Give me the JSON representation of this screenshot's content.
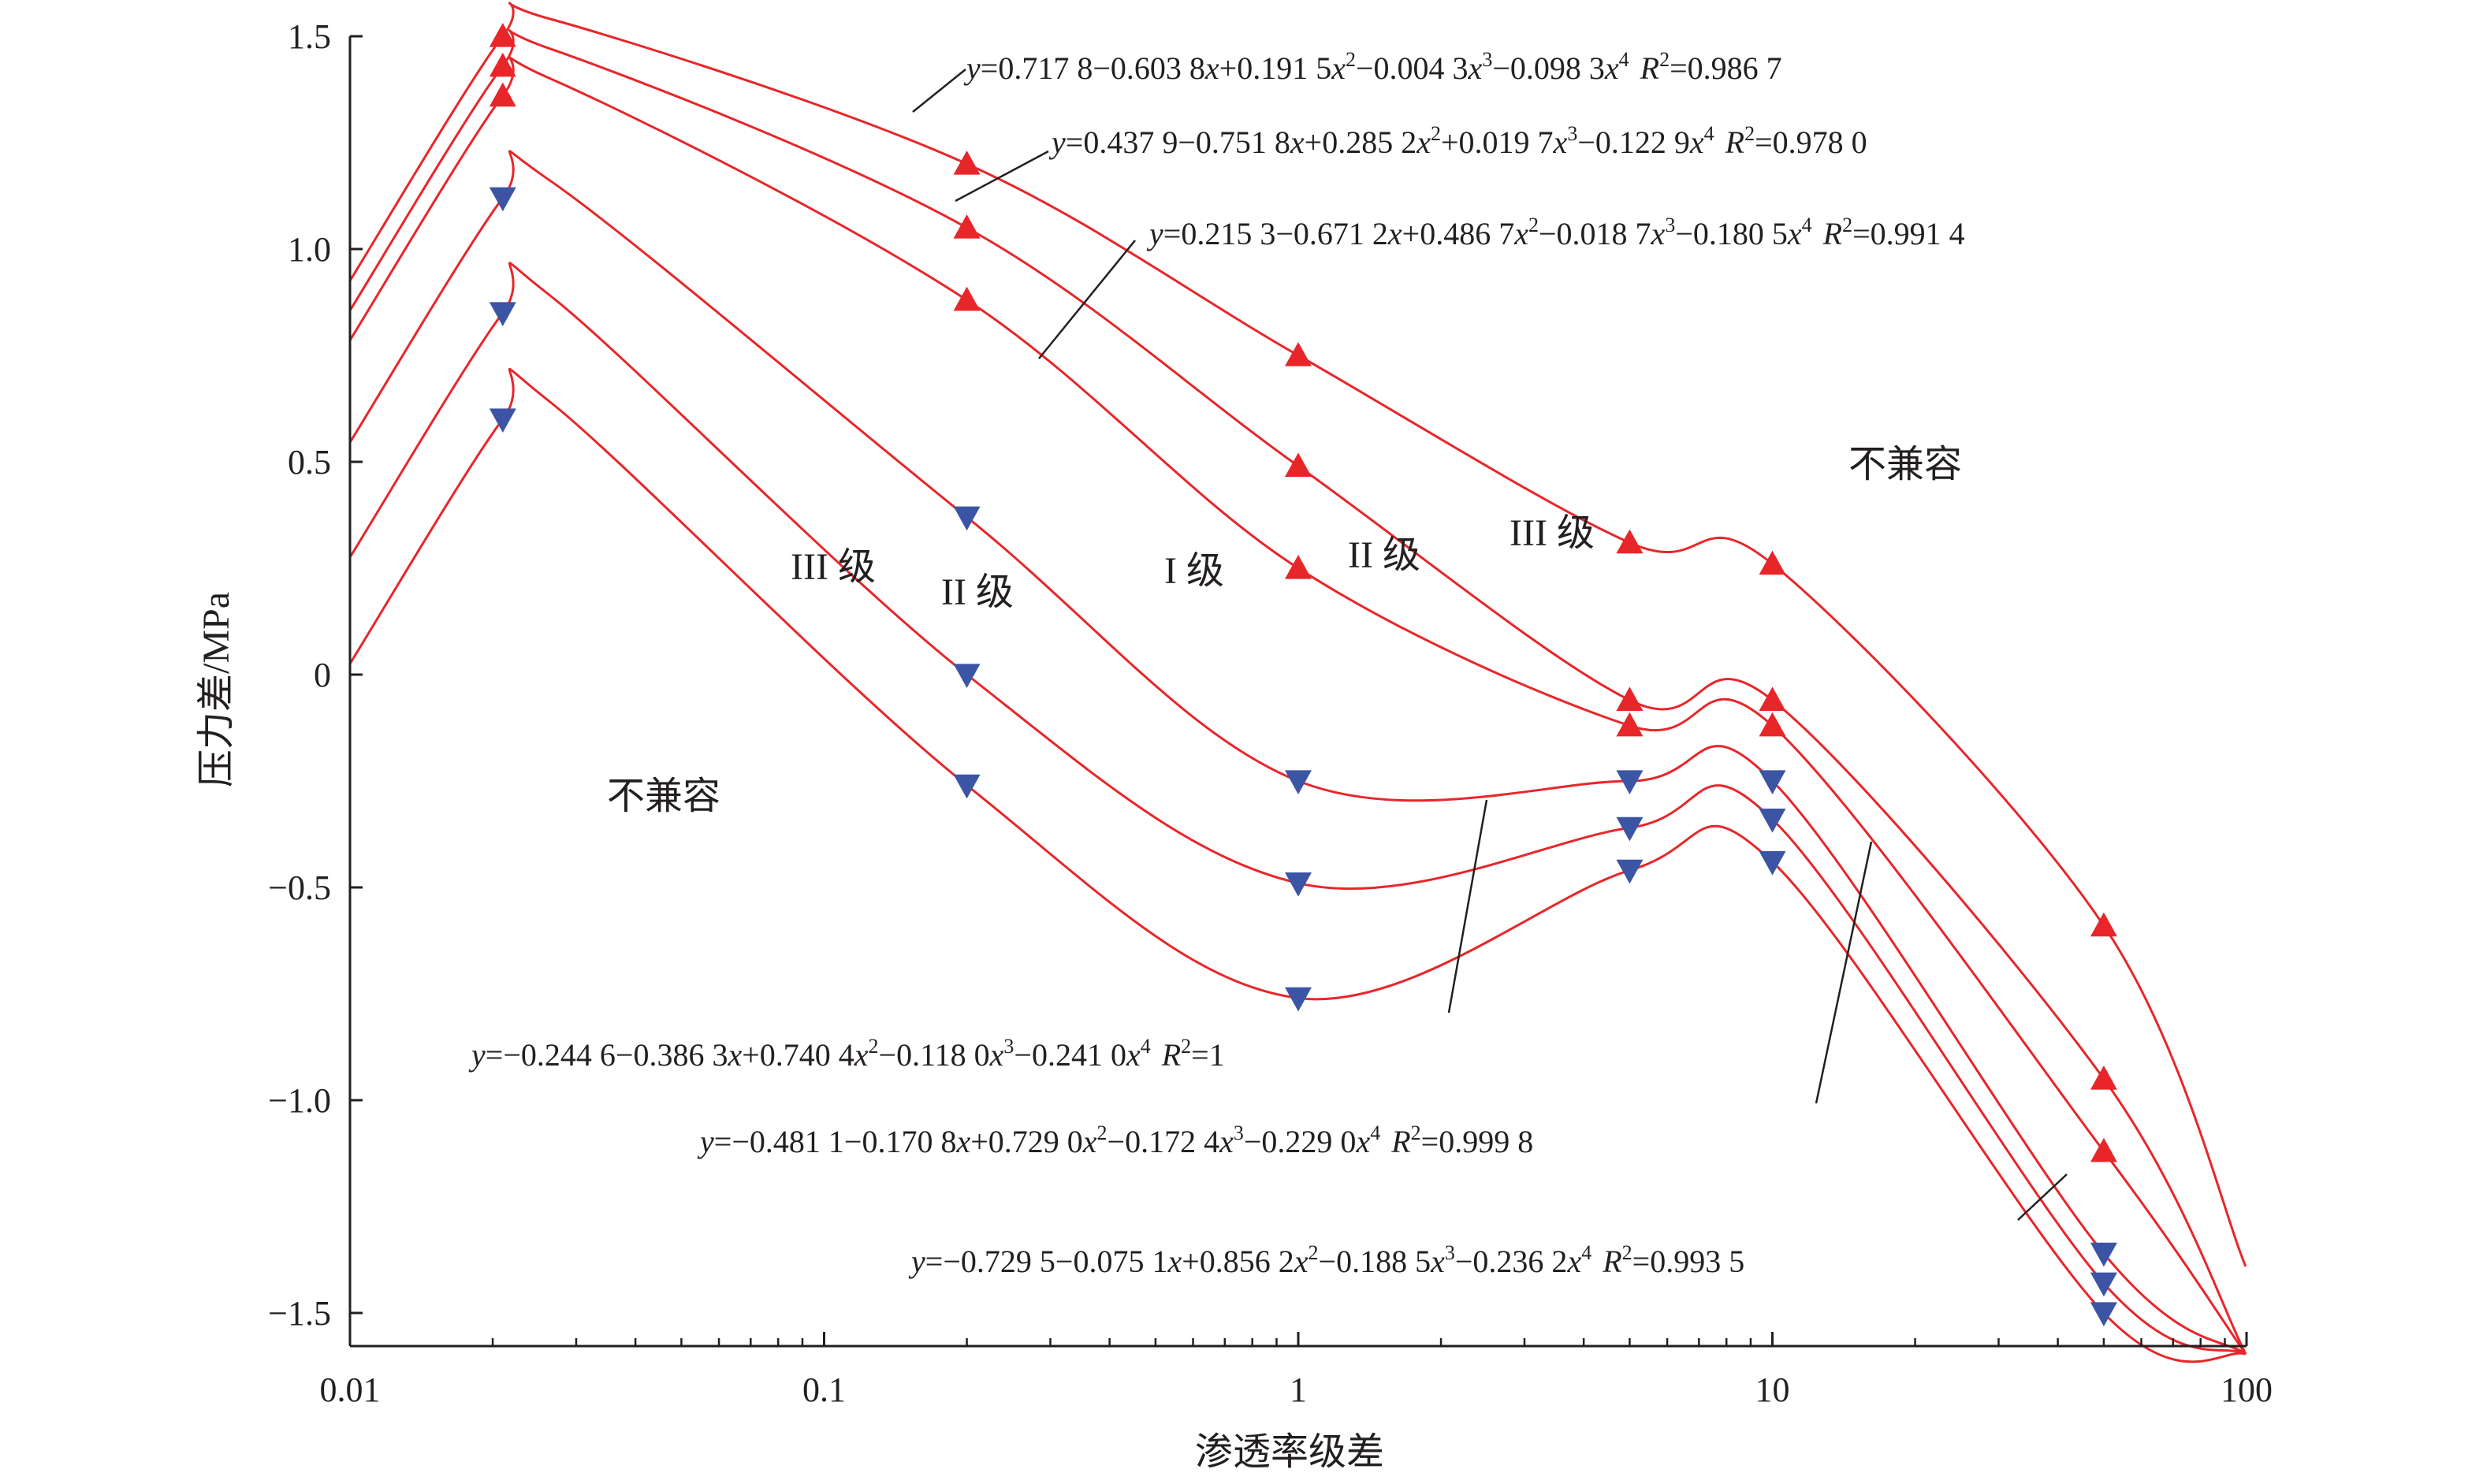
{
  "chart_data": {
    "type": "scatter",
    "title": "",
    "xlabel": "渗透率级差",
    "ylabel": "压力差/MPa",
    "x_scale": "log",
    "xlim": [
      0.01,
      100
    ],
    "ylim": [
      -1.6,
      1.5
    ],
    "x_ticks": [
      0.01,
      0.1,
      1,
      10,
      100
    ],
    "x_tick_labels": [
      "0.01",
      "0.1",
      "1",
      "10",
      "100"
    ],
    "y_ticks": [
      1.5,
      1.0,
      0.5,
      0,
      -0.5,
      -1.0,
      -1.5
    ],
    "y_tick_labels": [
      "1.5",
      "1.0",
      "0.5",
      "0",
      "−0.5",
      "−1.0",
      "−1.5"
    ],
    "grid": false,
    "series": [
      {
        "marker": "triangle-up",
        "color": "#e8262a",
        "x": [
          0.021,
          0.2,
          1,
          5,
          10,
          50
        ],
        "y": [
          1.5,
          1.2,
          0.75,
          0.31,
          0.26,
          -0.59
        ],
        "fit": {
          "a0": 0.7178,
          "a1": -0.6038,
          "a2": 0.1915,
          "a3": -0.0043,
          "a4": -0.0983
        },
        "equation": "y=0.717 8−0.603 8x+0.191 5x²−0.004 3x³−0.098 3x⁴ R²=0.986 7"
      },
      {
        "marker": "triangle-up",
        "color": "#e8262a",
        "x": [
          0.021,
          0.2,
          1,
          5,
          10,
          50
        ],
        "y": [
          1.43,
          1.05,
          0.49,
          -0.06,
          -0.06,
          -0.95
        ],
        "fit": {
          "a0": 0.4379,
          "a1": -0.7518,
          "a2": 0.2852,
          "a3": 0.0197,
          "a4": -0.1229
        },
        "equation": "y=0.437 9−0.751 8x+0.285 2x²+0.019 7x³−0.122 9x⁴ R²=0.978 0"
      },
      {
        "marker": "triangle-up",
        "color": "#e8262a",
        "x": [
          0.021,
          0.2,
          1,
          5,
          10,
          50
        ],
        "y": [
          1.36,
          0.88,
          0.25,
          -0.12,
          -0.12,
          -1.12
        ],
        "fit": {
          "a0": 0.2153,
          "a1": -0.6712,
          "a2": 0.4867,
          "a3": -0.0187,
          "a4": -0.1805
        },
        "equation": "y=0.215 3−0.671 2x+0.486 7x²−0.018 7x³−0.180 5x⁴ R²=0.991 4"
      },
      {
        "marker": "triangle-down",
        "color": "#3b55a4",
        "x": [
          0.021,
          0.2,
          1,
          5,
          10,
          50
        ],
        "y": [
          1.12,
          0.37,
          -0.25,
          -0.25,
          -0.25,
          -1.36
        ],
        "fit": {
          "a0": -0.2446,
          "a1": -0.3863,
          "a2": 0.7404,
          "a3": -0.118,
          "a4": -0.241
        },
        "equation": "y=−0.244 6−0.386 3x+0.740 4x²−0.118 0x³−0.241 0x⁴ R²=1"
      },
      {
        "marker": "triangle-down",
        "color": "#3b55a4",
        "x": [
          0.021,
          0.2,
          1,
          5,
          10,
          50
        ],
        "y": [
          0.85,
          0.0,
          -0.49,
          -0.36,
          -0.34,
          -1.43
        ],
        "fit": {
          "a0": -0.4811,
          "a1": -0.1708,
          "a2": 0.729,
          "a3": -0.1724,
          "a4": -0.229
        },
        "equation": "y=−0.481 1−0.170 8x+0.729 0x²−0.172 4x³−0.229 0x⁴ R²=0.999 8"
      },
      {
        "marker": "triangle-down",
        "color": "#3b55a4",
        "x": [
          0.021,
          0.2,
          1,
          5,
          10,
          50
        ],
        "y": [
          0.6,
          -0.26,
          -0.76,
          -0.46,
          -0.44,
          -1.5
        ],
        "fit": {
          "a0": -0.7295,
          "a1": -0.0751,
          "a2": 0.8562,
          "a3": -0.1885,
          "a4": -0.2362
        },
        "equation": "y=−0.729 5−0.075 1x+0.856 2x²−0.188 5x³−0.236 2x⁴ R²=0.993 5"
      }
    ],
    "equations": [
      {
        "y": "y",
        "body": "=0.717 8−0.603 8",
        "x": "x",
        "plus": "+0.191 5",
        "x2": "x",
        "p2": "2",
        "plus3": "−0.004 3",
        "x3": "x",
        "p3": "3",
        "plus4": "−0.098 3",
        "x4": "x",
        "p4": "4",
        "R": "R",
        "r2": "2",
        "rval": "=0.986 7"
      },
      {
        "y": "y",
        "body": "=0.437 9−0.751 8",
        "x": "x",
        "plus": "+0.285 2",
        "x2": "x",
        "p2": "2",
        "plus3": "+0.019 7",
        "x3": "x",
        "p3": "3",
        "plus4": "−0.122 9",
        "x4": "x",
        "p4": "4",
        "R": "R",
        "r2": "2",
        "rval": "=0.978 0"
      },
      {
        "y": "y",
        "body": "=0.215 3−0.671 2",
        "x": "x",
        "plus": "+0.486 7",
        "x2": "x",
        "p2": "2",
        "plus3": "−0.018 7",
        "x3": "x",
        "p3": "3",
        "plus4": "−0.180 5",
        "x4": "x",
        "p4": "4",
        "R": "R",
        "r2": "2",
        "rval": "=0.991 4"
      },
      {
        "y": "y",
        "body": "=−0.244 6−0.386 3",
        "x": "x",
        "plus": "+0.740 4",
        "x2": "x",
        "p2": "2",
        "plus3": "−0.118 0",
        "x3": "x",
        "p3": "3",
        "plus4": "−0.241 0",
        "x4": "x",
        "p4": "4",
        "R": "R",
        "r2": "2",
        "rval": "=1"
      },
      {
        "y": "y",
        "body": "=−0.481 1−0.170 8",
        "x": "x",
        "plus": "+0.729 0",
        "x2": "x",
        "p2": "2",
        "plus3": "−0.172 4",
        "x3": "x",
        "p3": "3",
        "plus4": "−0.229 0",
        "x4": "x",
        "p4": "4",
        "R": "R",
        "r2": "2",
        "rval": "=0.999 8"
      },
      {
        "y": "y",
        "body": "=−0.729 5−0.075 1",
        "x": "x",
        "plus": "+0.856 2",
        "x2": "x",
        "p2": "2",
        "plus3": "−0.188 5",
        "x3": "x",
        "p3": "3",
        "plus4": "−0.236 2",
        "x4": "x",
        "p4": "4",
        "R": "R",
        "r2": "2",
        "rval": "=0.993 5"
      }
    ],
    "region_labels": {
      "incompatible": "不兼容",
      "incompatible_lower": "不兼容",
      "grade_III_left": "III 级",
      "grade_II_left": "II 级",
      "grade_I": "I 级",
      "grade_II_right": "II 级",
      "grade_III_right": "III 级"
    },
    "colors": {
      "curve": "#e8262a",
      "up_marker": "#e8262a",
      "down_marker": "#3b55a4",
      "axis": "#231f20"
    }
  }
}
